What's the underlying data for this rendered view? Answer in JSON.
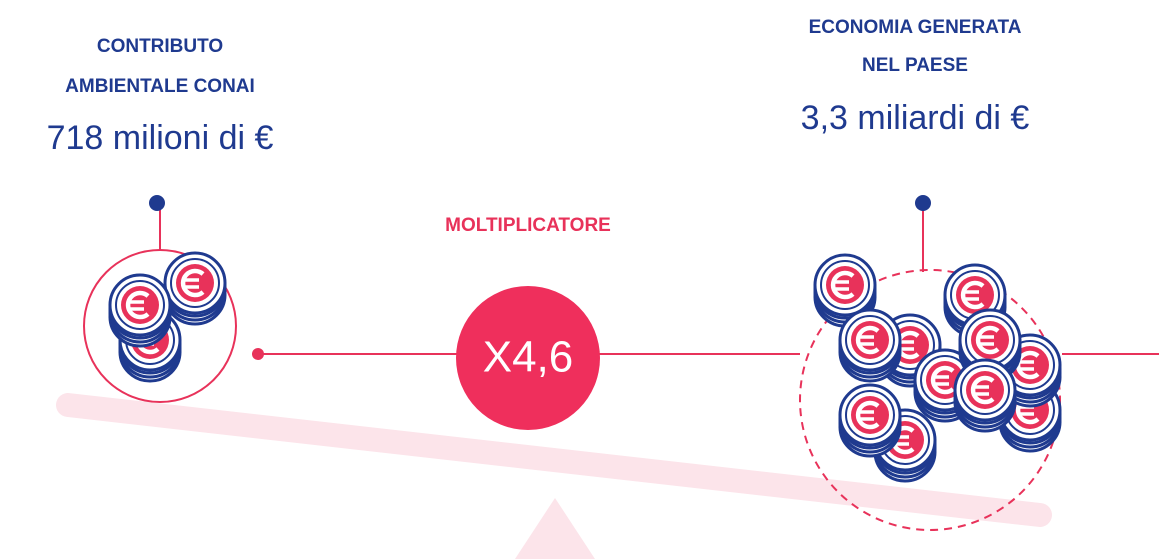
{
  "left": {
    "title_lines": [
      "CONTRIBUTO",
      "AMBIENTALE CONAI"
    ],
    "amount": "718 milioni di €"
  },
  "right": {
    "title_lines": [
      "ECONOMIA GENERATA",
      "NEL PAESE"
    ],
    "amount": "3,3 miliardi di €"
  },
  "center": {
    "label": "MOLTIPLICATORE",
    "value": "X4,6"
  }
}
